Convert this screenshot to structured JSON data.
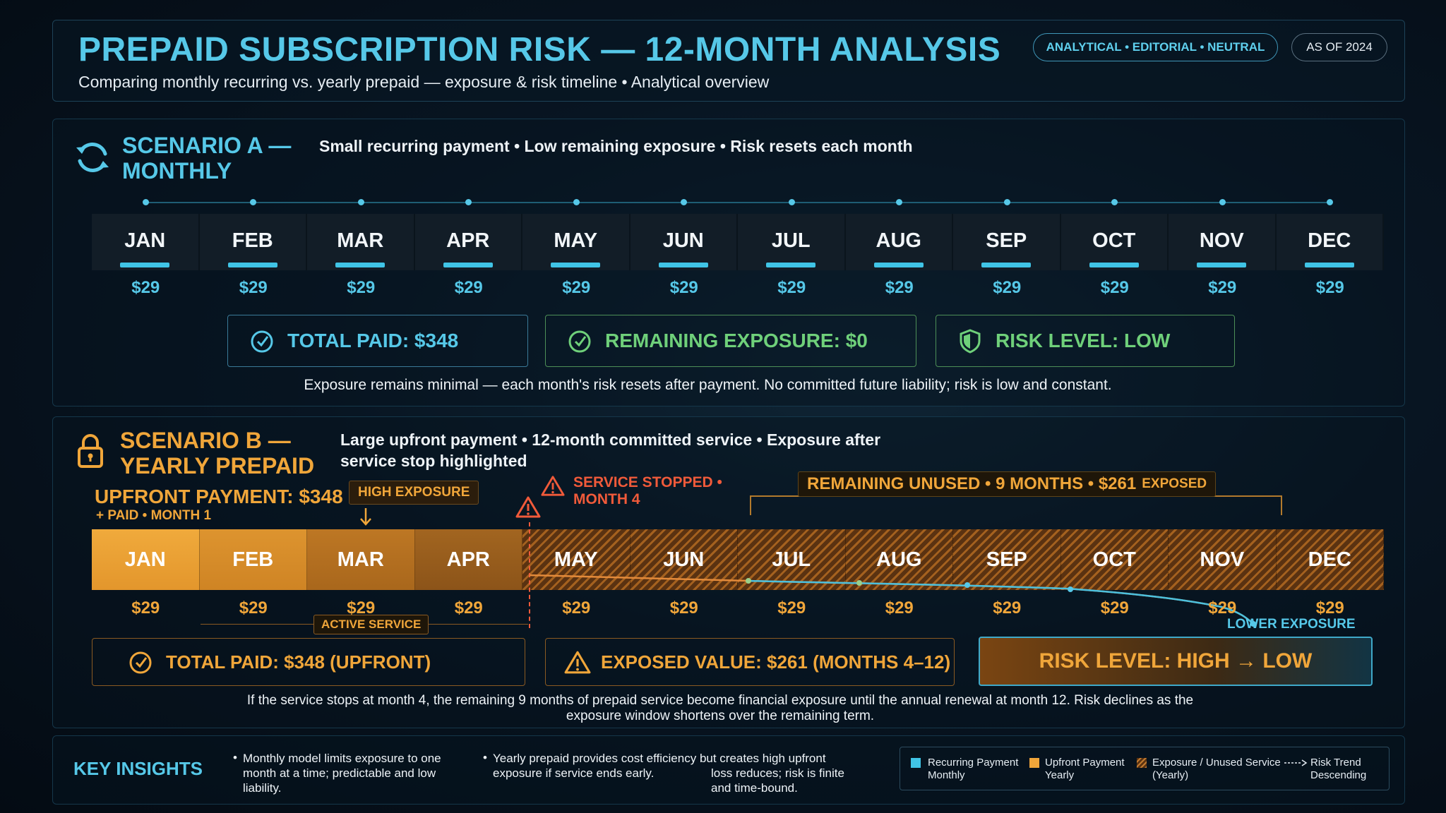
{
  "header": {
    "title": "PREPAID SUBSCRIPTION RISK — 12-MONTH ANALYSIS",
    "subtitle": "Comparing monthly recurring vs. yearly prepaid — exposure & risk timeline • Analytical overview",
    "tag": "ANALYTICAL • EDITORIAL • NEUTRAL",
    "as_of": "AS OF 2024"
  },
  "months": [
    "JAN",
    "FEB",
    "MAR",
    "APR",
    "MAY",
    "JUN",
    "JUL",
    "AUG",
    "SEP",
    "OCT",
    "NOV",
    "DEC"
  ],
  "monthly_price": "$29",
  "scenario_a": {
    "title_line1": "SCENARIO A —",
    "title_line2": "MONTHLY",
    "subtitle": "Small recurring payment • Low remaining exposure • Risk resets each month",
    "total_paid": "TOTAL PAID: $348",
    "remaining_exposure": "REMAINING EXPOSURE: $0",
    "risk_level": "RISK LEVEL: LOW",
    "note": "Exposure remains minimal — each month's risk resets after payment. No committed future liability; risk is low and constant."
  },
  "scenario_b": {
    "title_line1": "SCENARIO B —",
    "title_line2": "YEARLY PREPAID",
    "subtitle": "Large upfront payment • 12-month committed service • Exposure after service stop highlighted",
    "upfront_payment": "UPFRONT PAYMENT: $348",
    "paid_month": "+ PAID • MONTH 1",
    "high_exposure": "HIGH EXPOSURE",
    "service_stopped_line1": "SERVICE STOPPED •",
    "service_stopped_line2": "MONTH 4",
    "remaining_unused": "REMAINING UNUSED • 9 MONTHS • $261",
    "exposed_word": "EXPOSED",
    "active_service": "ACTIVE SERVICE",
    "lower_exposure": "LOWER EXPOSURE",
    "total_paid": "TOTAL PAID: $348 (UPFRONT)",
    "exposed_value": "EXPOSED VALUE: $261 (MONTHS 4–12)",
    "risk_level": "RISK LEVEL: HIGH → LOW",
    "note_line1": "If the service stops at month 4, the remaining 9 months of prepaid service become financial exposure until the annual renewal at month 12.  Risk declines as  the",
    "note_line2": "exposure window shortens over the remaining term."
  },
  "insights": {
    "title": "KEY INSIGHTS",
    "point1": "Monthly model limits exposure to one month at a time; predictable and low liability.",
    "point2_line1": "Yearly prepaid provides cost efficiency but creates high upfront",
    "point2_line2": "exposure if service ends early.",
    "point2_tail_line1": "loss reduces; risk is finite",
    "point2_tail_line2": "and time-bound."
  },
  "legend": {
    "recurring_line1": "Recurring Payment",
    "recurring_line2": "Monthly",
    "upfront_line1": "Upfront Payment",
    "upfront_line2": "Yearly",
    "exposure_line1": "Exposure / Unused Service",
    "exposure_line2": "(Yearly)",
    "trend_line1": "Risk Trend",
    "trend_line2": "Descending"
  },
  "colors": {
    "cyan": "#56c8e8",
    "green": "#6fd07a",
    "orange": "#f0a63a",
    "red": "#f05a3a"
  }
}
